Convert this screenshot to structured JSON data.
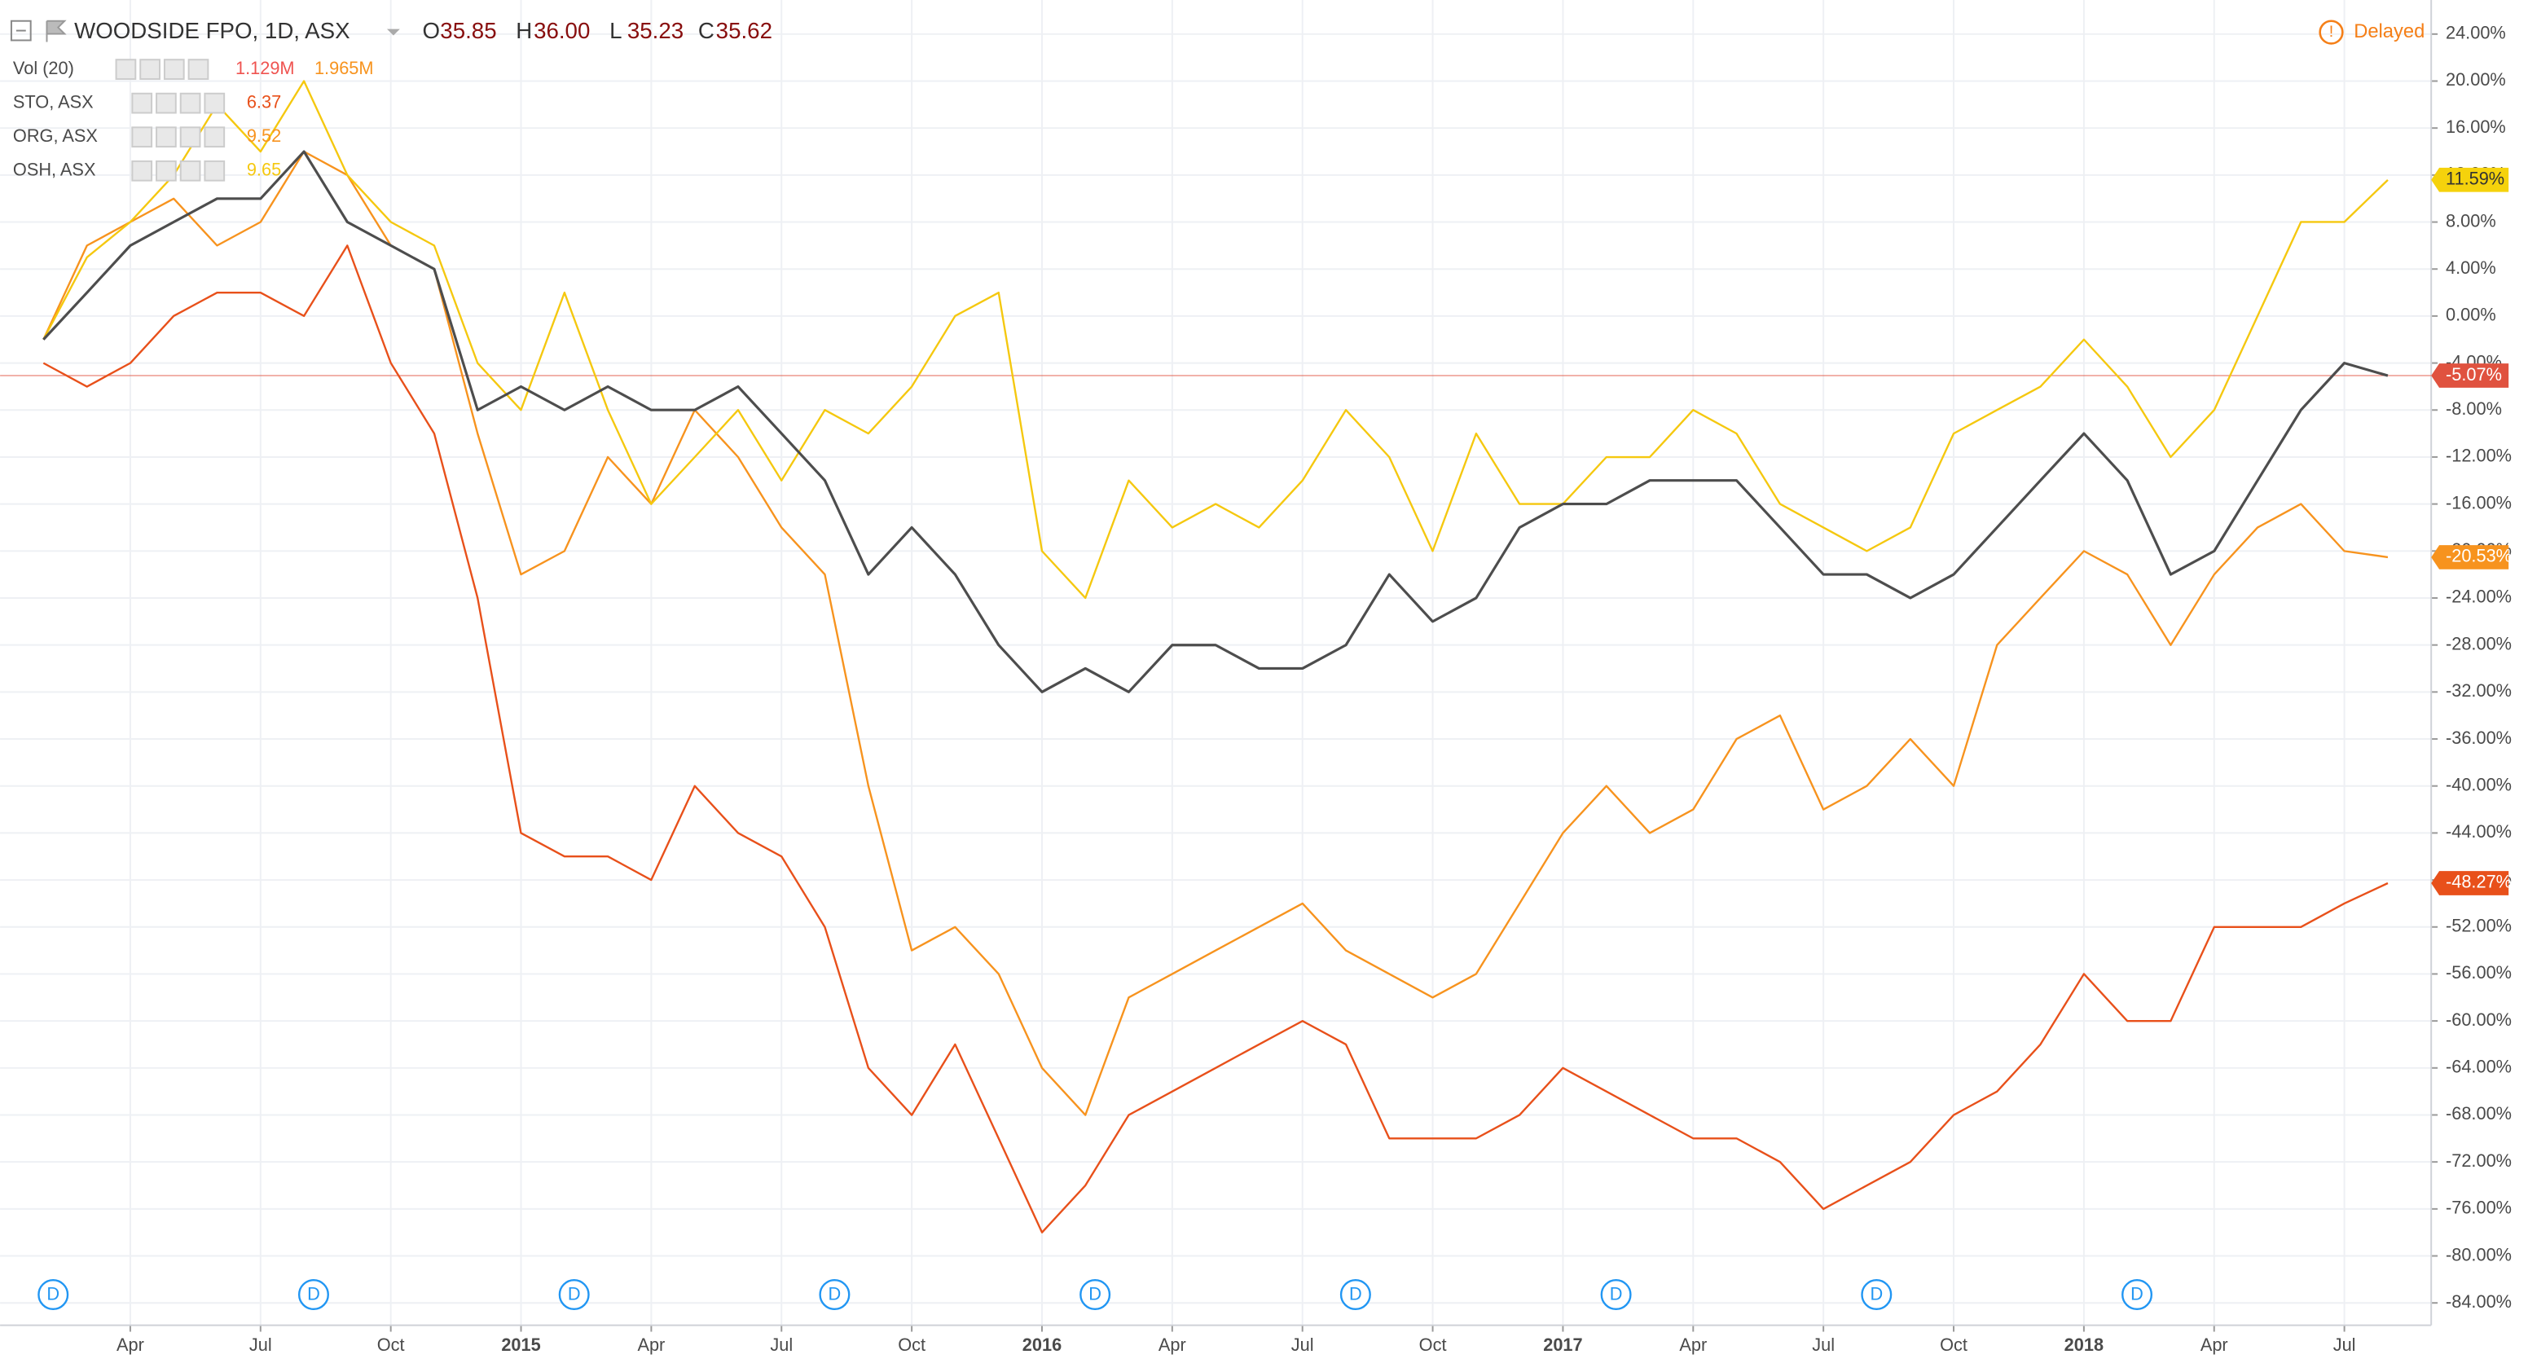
{
  "chart_data": {
    "type": "line",
    "header": {
      "ohlc": [
        {
          "label": "O",
          "value": "35.85"
        },
        {
          "label": "H",
          "value": "36.00"
        },
        {
          "label": "L",
          "value": "35.23"
        },
        {
          "label": "C",
          "value": "35.62"
        }
      ],
      "ohlc_color": "#880e0e",
      "status": "Delayed",
      "status_color": "#f57f17"
    },
    "studies": [
      {
        "name": "Vol (20)",
        "values": [
          "1.129M",
          "1.965M"
        ],
        "colors": [
          "#ef5350",
          "#f7931e"
        ]
      }
    ],
    "x": [
      "2014-02",
      "2014-03",
      "2014-04",
      "2014-05",
      "2014-06",
      "2014-07",
      "2014-08",
      "2014-09",
      "2014-10",
      "2014-11",
      "2014-12",
      "2015-01",
      "2015-02",
      "2015-03",
      "2015-04",
      "2015-05",
      "2015-06",
      "2015-07",
      "2015-08",
      "2015-09",
      "2015-10",
      "2015-11",
      "2015-12",
      "2016-01",
      "2016-02",
      "2016-03",
      "2016-04",
      "2016-05",
      "2016-06",
      "2016-07",
      "2016-08",
      "2016-09",
      "2016-10",
      "2016-11",
      "2016-12",
      "2017-01",
      "2017-02",
      "2017-03",
      "2017-04",
      "2017-05",
      "2017-06",
      "2017-07",
      "2017-08",
      "2017-09",
      "2017-10",
      "2017-11",
      "2017-12",
      "2018-01",
      "2018-02",
      "2018-03",
      "2018-04",
      "2018-05",
      "2018-06",
      "2018-07",
      "2018-08"
    ],
    "series": [
      {
        "name": "WOODSIDE FPO, 1D, ASX",
        "color": "#4d4d4d",
        "label_color": "#e0523f",
        "label_text_color": "#ffffff",
        "values": [
          -2,
          2,
          6,
          8,
          10,
          10,
          14,
          8,
          6,
          4,
          -8,
          -6,
          -8,
          -6,
          -8,
          -8,
          -6,
          -10,
          -14,
          -22,
          -18,
          -22,
          -28,
          -32,
          -30,
          -32,
          -28,
          -28,
          -30,
          -30,
          -28,
          -22,
          -26,
          -24,
          -18,
          -16,
          -16,
          -14,
          -14,
          -14,
          -18,
          -22,
          -22,
          -24,
          -22,
          -18,
          -14,
          -10,
          -14,
          -22,
          -20,
          -14,
          -8,
          -4,
          -5.07
        ],
        "value_labels": [
          null,
          null,
          null,
          null,
          null,
          null,
          null,
          null,
          null,
          null,
          null,
          null,
          null,
          null,
          null,
          null,
          null,
          null,
          null,
          null,
          null,
          null,
          null,
          null,
          null,
          null,
          null,
          null,
          null,
          null,
          null,
          null,
          null,
          null,
          null,
          null,
          null,
          null,
          null,
          null,
          null,
          null,
          null,
          null,
          null,
          null,
          null,
          null,
          null,
          null,
          null,
          null,
          null,
          null,
          "-5.07%"
        ]
      },
      {
        "name": "STO, ASX",
        "color": "#e8501a",
        "label_color": "#e8501a",
        "label_text_color": "#ffffff",
        "legend_value": "6.37",
        "values": [
          -4,
          -6,
          -4,
          0,
          2,
          2,
          0,
          6,
          -4,
          -10,
          -24,
          -44,
          -46,
          -46,
          -48,
          -40,
          -44,
          -46,
          -52,
          -64,
          -68,
          -62,
          -70,
          -78,
          -74,
          -68,
          -66,
          -64,
          -62,
          -60,
          -62,
          -70,
          -70,
          -70,
          -68,
          -64,
          -66,
          -68,
          -70,
          -70,
          -72,
          -76,
          -74,
          -72,
          -68,
          -66,
          -62,
          -56,
          -60,
          -60,
          -52,
          -52,
          -52,
          -50,
          -48.27
        ],
        "value_labels": [
          null,
          null,
          null,
          null,
          null,
          null,
          null,
          null,
          null,
          null,
          null,
          null,
          null,
          null,
          null,
          null,
          null,
          null,
          null,
          null,
          null,
          null,
          null,
          null,
          null,
          null,
          null,
          null,
          null,
          null,
          null,
          null,
          null,
          null,
          null,
          null,
          null,
          null,
          null,
          null,
          null,
          null,
          null,
          null,
          null,
          null,
          null,
          null,
          null,
          null,
          null,
          null,
          null,
          null,
          "-48.27%"
        ]
      },
      {
        "name": "ORG, ASX",
        "color": "#f7931e",
        "label_color": "#f7931e",
        "label_text_color": "#ffffff",
        "legend_value": "9.52",
        "values": [
          -2,
          6,
          8,
          10,
          6,
          8,
          14,
          12,
          6,
          4,
          -10,
          -22,
          -20,
          -12,
          -16,
          -8,
          -12,
          -18,
          -22,
          -40,
          -54,
          -52,
          -56,
          -64,
          -68,
          -58,
          -56,
          -54,
          -52,
          -50,
          -54,
          -56,
          -58,
          -56,
          -50,
          -44,
          -40,
          -44,
          -42,
          -36,
          -34,
          -42,
          -40,
          -36,
          -40,
          -28,
          -24,
          -20,
          -22,
          -28,
          -22,
          -18,
          -16,
          -20,
          -20.53
        ],
        "value_labels": [
          null,
          null,
          null,
          null,
          null,
          null,
          null,
          null,
          null,
          null,
          null,
          null,
          null,
          null,
          null,
          null,
          null,
          null,
          null,
          null,
          null,
          null,
          null,
          null,
          null,
          null,
          null,
          null,
          null,
          null,
          null,
          null,
          null,
          null,
          null,
          null,
          null,
          null,
          null,
          null,
          null,
          null,
          null,
          null,
          null,
          null,
          null,
          null,
          null,
          null,
          null,
          null,
          null,
          null,
          "-20.53%"
        ]
      },
      {
        "name": "OSH, ASX",
        "color": "#f5c80f",
        "label_color": "#f5d20c",
        "label_text_color": "#333333",
        "legend_value": "9.65",
        "values": [
          -2,
          5,
          8,
          12,
          18,
          14,
          20,
          12,
          8,
          6,
          -4,
          -8,
          2,
          -8,
          -16,
          -12,
          -8,
          -14,
          -8,
          -10,
          -6,
          0,
          2,
          -20,
          -24,
          -14,
          -18,
          -16,
          -18,
          -14,
          -8,
          -12,
          -20,
          -10,
          -16,
          -16,
          -12,
          -12,
          -8,
          -10,
          -16,
          -18,
          -20,
          -18,
          -10,
          -8,
          -6,
          -2,
          -6,
          -12,
          -8,
          0,
          8,
          8,
          11.59
        ],
        "value_labels": [
          null,
          null,
          null,
          null,
          null,
          null,
          null,
          null,
          null,
          null,
          null,
          null,
          null,
          null,
          null,
          null,
          null,
          null,
          null,
          null,
          null,
          null,
          null,
          null,
          null,
          null,
          null,
          null,
          null,
          null,
          null,
          null,
          null,
          null,
          null,
          null,
          null,
          null,
          null,
          null,
          null,
          null,
          null,
          null,
          null,
          null,
          null,
          null,
          null,
          null,
          null,
          null,
          null,
          null,
          "11.59%"
        ]
      }
    ],
    "dividends": {
      "label": "D",
      "color": "#2196f3",
      "x": [
        "2014-02",
        "2014-08",
        "2015-02",
        "2015-08",
        "2016-02",
        "2016-08",
        "2017-02",
        "2017-08",
        "2018-02"
      ]
    },
    "xlim": [
      "2014-01",
      "2018-09"
    ],
    "xticks": [
      {
        "value": "2014-04",
        "label": "Apr"
      },
      {
        "value": "2014-07",
        "label": "Jul"
      },
      {
        "value": "2014-10",
        "label": "Oct"
      },
      {
        "value": "2015-01",
        "label": "2015"
      },
      {
        "value": "2015-04",
        "label": "Apr"
      },
      {
        "value": "2015-07",
        "label": "Jul"
      },
      {
        "value": "2015-10",
        "label": "Oct"
      },
      {
        "value": "2016-01",
        "label": "2016"
      },
      {
        "value": "2016-04",
        "label": "Apr"
      },
      {
        "value": "2016-07",
        "label": "Jul"
      },
      {
        "value": "2016-10",
        "label": "Oct"
      },
      {
        "value": "2017-01",
        "label": "2017"
      },
      {
        "value": "2017-04",
        "label": "Apr"
      },
      {
        "value": "2017-07",
        "label": "Jul"
      },
      {
        "value": "2017-10",
        "label": "Oct"
      },
      {
        "value": "2018-01",
        "label": "2018"
      },
      {
        "value": "2018-04",
        "label": "Apr"
      },
      {
        "value": "2018-07",
        "label": "Jul"
      }
    ],
    "ylim": [
      -85.9,
      26.9
    ],
    "yticks": [
      {
        "value": 24,
        "label": "24.00%"
      },
      {
        "value": 20,
        "label": "20.00%"
      },
      {
        "value": 16,
        "label": "16.00%"
      },
      {
        "value": 12,
        "label": "12.00%"
      },
      {
        "value": 8,
        "label": "8.00%"
      },
      {
        "value": 4,
        "label": "4.00%"
      },
      {
        "value": 0,
        "label": "0.00%"
      },
      {
        "value": -4,
        "label": "-4.00%"
      },
      {
        "value": -8,
        "label": "-8.00%"
      },
      {
        "value": -12,
        "label": "-12.00%"
      },
      {
        "value": -16,
        "label": "-16.00%"
      },
      {
        "value": -20,
        "label": "-20.00%"
      },
      {
        "value": -24,
        "label": "-24.00%"
      },
      {
        "value": -28,
        "label": "-28.00%"
      },
      {
        "value": -32,
        "label": "-32.00%"
      },
      {
        "value": -36,
        "label": "-36.00%"
      },
      {
        "value": -40,
        "label": "-40.00%"
      },
      {
        "value": -44,
        "label": "-44.00%"
      },
      {
        "value": -48,
        "label": "-48.00%"
      },
      {
        "value": -52,
        "label": "-52.00%"
      },
      {
        "value": -56,
        "label": "-56.00%"
      },
      {
        "value": -60,
        "label": "-60.00%"
      },
      {
        "value": -64,
        "label": "-64.00%"
      },
      {
        "value": -68,
        "label": "-68.00%"
      },
      {
        "value": -72,
        "label": "-72.00%"
      },
      {
        "value": -76,
        "label": "-76.00%"
      },
      {
        "value": -80,
        "label": "-80.00%"
      },
      {
        "value": -84,
        "label": "-84.00%"
      }
    ],
    "grid": true
  }
}
